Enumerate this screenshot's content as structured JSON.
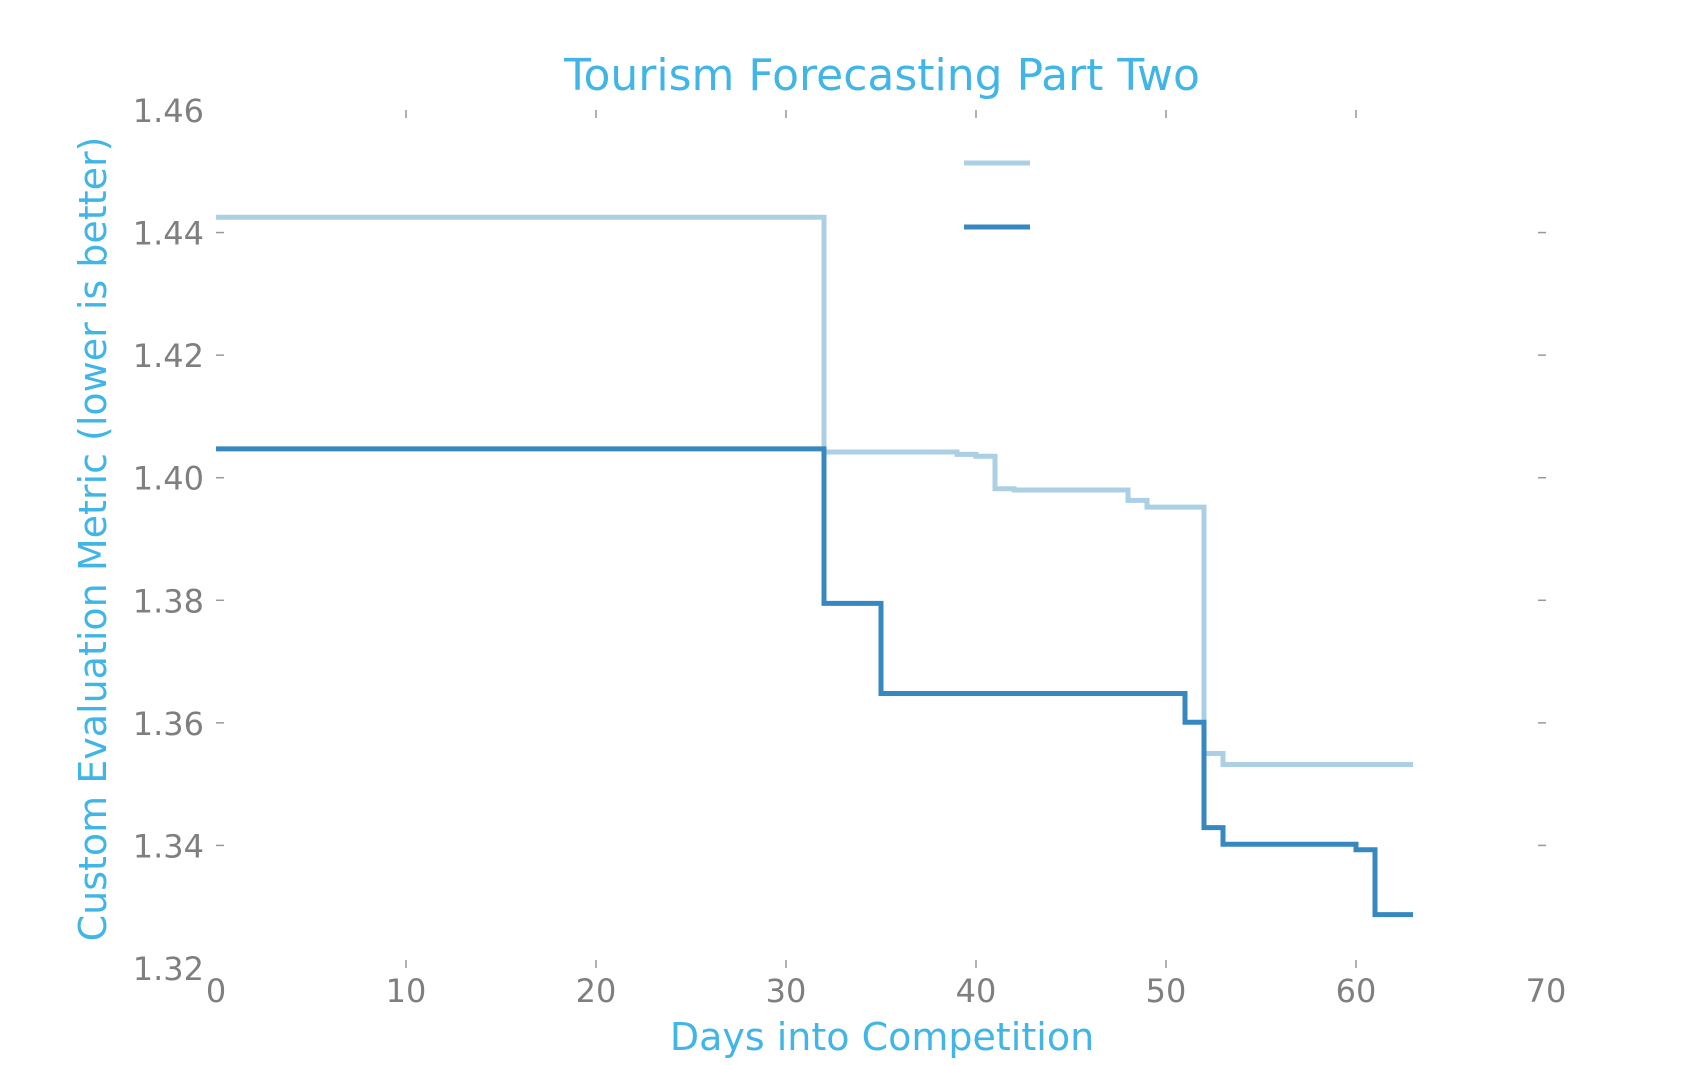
{
  "chart_data": {
    "type": "line",
    "step": true,
    "title": "Tourism Forecasting Part Two",
    "xlabel": "Days into Competition",
    "ylabel": "Custom Evaluation Metric (lower is better)",
    "xlim": [
      0,
      70
    ],
    "ylim": [
      1.32,
      1.46
    ],
    "xticks": [
      0,
      10,
      20,
      30,
      40,
      50,
      60,
      70
    ],
    "yticks": [
      1.32,
      1.34,
      1.36,
      1.38,
      1.4,
      1.42,
      1.44,
      1.46
    ],
    "xtick_labels": [
      "0",
      "10",
      "20",
      "30",
      "40",
      "50",
      "60",
      "70"
    ],
    "ytick_labels": [
      "1.32",
      "1.34",
      "1.36",
      "1.38",
      "1.40",
      "1.42",
      "1.44",
      "1.46"
    ],
    "grid": false,
    "legend_position": "top-center",
    "colors": {
      "title": "#41b6e6",
      "tick": "#7f7f7f"
    },
    "series": [
      {
        "color": "#abcfe3",
        "x": [
          0,
          32,
          39,
          40,
          41,
          42,
          48,
          49,
          52,
          53,
          63
        ],
        "y": [
          1.4425,
          1.4042,
          1.4038,
          1.4035,
          1.3982,
          1.398,
          1.3963,
          1.3952,
          1.355,
          1.3532,
          1.3532
        ]
      },
      {
        "color": "#3787c0",
        "x": [
          0,
          32,
          35,
          51,
          52,
          53,
          60,
          61,
          63
        ],
        "y": [
          1.4047,
          1.3795,
          1.3648,
          1.3601,
          1.3429,
          1.3402,
          1.3393,
          1.3287,
          1.3287
        ]
      }
    ]
  }
}
